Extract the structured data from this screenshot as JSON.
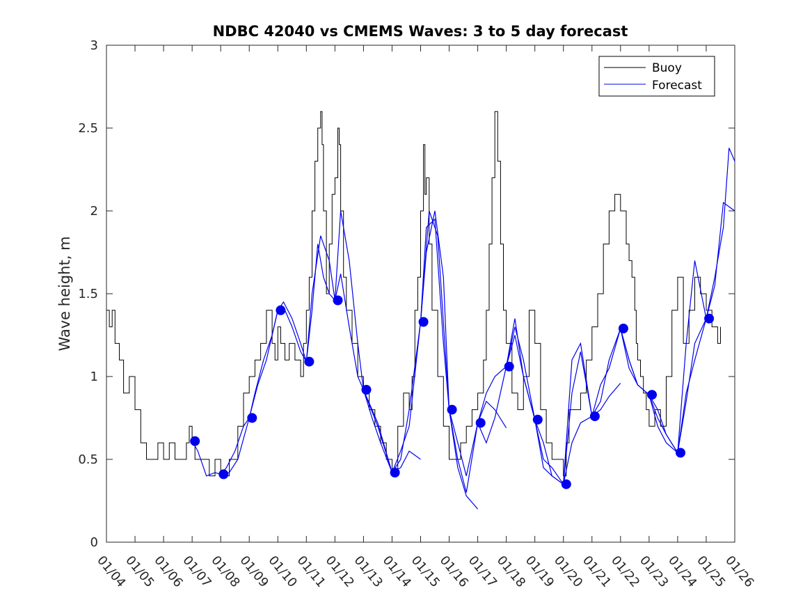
{
  "chart_data": {
    "type": "line",
    "title": "NDBC 42040 vs CMEMS Waves: 3 to 5 day forecast",
    "xlabel": "",
    "ylabel": "Wave height, m",
    "xlim": [
      0,
      22
    ],
    "ylim": [
      0,
      3
    ],
    "yticks": [
      0,
      0.5,
      1,
      1.5,
      2,
      2.5,
      3
    ],
    "ytick_labels": [
      "0",
      "0.5",
      "1",
      "1.5",
      "2",
      "2.5",
      "3"
    ],
    "xticks": [
      0,
      1,
      2,
      3,
      4,
      5,
      6,
      7,
      8,
      9,
      10,
      11,
      12,
      13,
      14,
      15,
      16,
      17,
      18,
      19,
      20,
      21,
      22
    ],
    "xtick_labels": [
      "01/04",
      "01/05",
      "01/06",
      "01/07",
      "01/08",
      "01/09",
      "01/10",
      "01/11",
      "01/12",
      "01/13",
      "01/14",
      "01/15",
      "01/16",
      "01/17",
      "01/18",
      "01/19",
      "01/20",
      "01/21",
      "01/22",
      "01/23",
      "01/24",
      "01/25",
      "01/26"
    ],
    "grid": false,
    "legend": {
      "position": "top-right",
      "entries": [
        "Buoy",
        "Forecast"
      ]
    },
    "colors": {
      "buoy": "#000000",
      "forecast": "#0000ee",
      "markers": "#0000ee"
    },
    "series": [
      {
        "name": "Buoy",
        "color": "#000000",
        "step": true,
        "x": [
          0.0,
          0.1,
          0.2,
          0.3,
          0.45,
          0.6,
          0.8,
          1.0,
          1.2,
          1.4,
          1.6,
          1.8,
          2.0,
          2.2,
          2.4,
          2.6,
          2.8,
          2.9,
          3.0,
          3.1,
          3.2,
          3.4,
          3.6,
          3.8,
          4.0,
          4.3,
          4.6,
          4.8,
          5.0,
          5.2,
          5.4,
          5.6,
          5.8,
          5.9,
          6.0,
          6.1,
          6.25,
          6.4,
          6.6,
          6.8,
          6.9,
          7.0,
          7.1,
          7.2,
          7.3,
          7.4,
          7.5,
          7.55,
          7.6,
          7.7,
          7.8,
          7.9,
          8.0,
          8.1,
          8.15,
          8.2,
          8.3,
          8.4,
          8.6,
          8.8,
          9.0,
          9.2,
          9.4,
          9.6,
          9.8,
          10.0,
          10.2,
          10.4,
          10.6,
          10.7,
          10.8,
          10.9,
          11.0,
          11.1,
          11.15,
          11.2,
          11.3,
          11.4,
          11.6,
          11.8,
          12.0,
          12.2,
          12.4,
          12.6,
          12.8,
          13.0,
          13.2,
          13.3,
          13.4,
          13.5,
          13.6,
          13.7,
          13.8,
          13.9,
          14.0,
          14.2,
          14.4,
          14.6,
          14.8,
          15.0,
          15.2,
          15.4,
          15.6,
          15.8,
          16.0,
          16.1,
          16.2,
          16.4,
          16.6,
          16.8,
          17.0,
          17.2,
          17.4,
          17.6,
          17.8,
          18.0,
          18.2,
          18.3,
          18.4,
          18.5,
          18.55,
          18.6,
          18.7,
          18.8,
          18.9,
          19.0,
          19.2,
          19.4,
          19.6,
          19.8,
          20.0,
          20.2,
          20.4,
          20.6,
          20.8,
          21.0,
          21.2,
          21.4,
          21.5
        ],
        "y": [
          1.4,
          1.3,
          1.4,
          1.2,
          1.1,
          0.9,
          1.0,
          0.8,
          0.6,
          0.5,
          0.5,
          0.6,
          0.5,
          0.6,
          0.5,
          0.5,
          0.6,
          0.7,
          0.6,
          0.5,
          0.5,
          0.5,
          0.4,
          0.5,
          0.4,
          0.5,
          0.7,
          0.9,
          1.0,
          1.1,
          1.2,
          1.4,
          1.2,
          1.1,
          1.3,
          1.2,
          1.1,
          1.2,
          1.1,
          1.0,
          1.2,
          1.4,
          1.6,
          2.0,
          2.3,
          2.5,
          2.6,
          2.4,
          2.0,
          1.5,
          1.8,
          2.1,
          2.2,
          2.5,
          2.4,
          2.0,
          1.6,
          1.4,
          1.2,
          1.0,
          0.9,
          0.8,
          0.7,
          0.6,
          0.5,
          0.4,
          0.7,
          0.9,
          0.8,
          1.0,
          1.4,
          1.6,
          2.0,
          2.4,
          2.1,
          2.2,
          1.8,
          1.4,
          1.0,
          0.7,
          0.5,
          0.5,
          0.6,
          0.7,
          0.8,
          0.9,
          1.1,
          1.4,
          1.8,
          2.2,
          2.6,
          2.3,
          1.8,
          1.4,
          1.2,
          0.9,
          0.8,
          1.0,
          1.4,
          1.2,
          0.8,
          0.6,
          0.5,
          0.5,
          0.4,
          0.6,
          0.8,
          0.8,
          0.9,
          1.1,
          1.3,
          1.5,
          1.8,
          2.0,
          2.1,
          2.0,
          1.8,
          1.7,
          1.6,
          1.4,
          1.2,
          1.1,
          1.0,
          0.9,
          0.8,
          0.7,
          0.8,
          0.7,
          1.0,
          1.4,
          1.6,
          1.2,
          1.4,
          1.6,
          1.5,
          1.4,
          1.3,
          1.2,
          1.3
        ]
      },
      {
        "name": "Forecast",
        "color": "#0000ee",
        "segments": [
          {
            "x": [
              3.0,
              3.2,
              3.5,
              3.8,
              4.0,
              4.2,
              4.5,
              4.8,
              5.0,
              5.2,
              5.5,
              5.8,
              6.0
            ],
            "y": [
              0.61,
              0.55,
              0.4,
              0.42,
              0.41,
              0.45,
              0.55,
              0.7,
              0.75,
              0.9,
              1.1,
              1.25,
              1.4
            ]
          },
          {
            "x": [
              4.0,
              4.3,
              4.6,
              5.0,
              5.3,
              5.6,
              6.0,
              6.2,
              6.5,
              6.8,
              7.0
            ],
            "y": [
              0.41,
              0.42,
              0.5,
              0.75,
              0.95,
              1.1,
              1.4,
              1.45,
              1.35,
              1.2,
              1.09
            ]
          },
          {
            "x": [
              6.0,
              6.2,
              6.5,
              6.8,
              7.0,
              7.2,
              7.4,
              7.6,
              7.8,
              8.0
            ],
            "y": [
              1.4,
              1.42,
              1.3,
              1.15,
              1.09,
              1.4,
              1.8,
              1.6,
              1.5,
              1.46
            ]
          },
          {
            "x": [
              7.0,
              7.2,
              7.5,
              7.8,
              8.0,
              8.2,
              8.5,
              8.8,
              9.0,
              9.3,
              9.6,
              10.0
            ],
            "y": [
              1.09,
              1.5,
              1.85,
              1.7,
              1.46,
              2.0,
              1.7,
              1.2,
              0.92,
              0.75,
              0.6,
              0.42
            ]
          },
          {
            "x": [
              8.0,
              8.2,
              8.5,
              8.8,
              9.0,
              9.5,
              10.0,
              10.3,
              10.6,
              11.0
            ],
            "y": [
              1.46,
              1.62,
              1.3,
              1.0,
              0.92,
              0.7,
              0.42,
              0.45,
              0.55,
              0.5
            ]
          },
          {
            "x": [
              9.0,
              9.5,
              10.0,
              10.3,
              10.6,
              11.0,
              11.2,
              11.5,
              11.8,
              12.0
            ],
            "y": [
              0.92,
              0.72,
              0.42,
              0.55,
              0.7,
              1.33,
              1.75,
              2.0,
              1.6,
              0.8
            ]
          },
          {
            "x": [
              10.0,
              10.3,
              10.6,
              11.0,
              11.2,
              11.5,
              11.8,
              12.0,
              12.3,
              12.6,
              13.0
            ],
            "y": [
              0.42,
              0.5,
              0.8,
              1.33,
              1.9,
              1.95,
              1.2,
              0.8,
              0.45,
              0.28,
              0.2
            ]
          },
          {
            "x": [
              11.0,
              11.3,
              11.6,
              12.0,
              12.3,
              12.6,
              13.0,
              13.3,
              13.6,
              14.0
            ],
            "y": [
              1.33,
              2.0,
              1.85,
              0.8,
              0.5,
              0.3,
              0.72,
              0.85,
              0.8,
              0.69
            ]
          },
          {
            "x": [
              12.0,
              12.3,
              12.6,
              13.0,
              13.3,
              13.6,
              14.0,
              14.3,
              14.6,
              15.0
            ],
            "y": [
              0.8,
              0.6,
              0.4,
              0.72,
              0.9,
              1.0,
              1.06,
              1.3,
              1.1,
              0.74
            ]
          },
          {
            "x": [
              13.0,
              13.3,
              13.6,
              14.0,
              14.3,
              14.6,
              15.0,
              15.3,
              15.6,
              16.0
            ],
            "y": [
              0.72,
              0.6,
              0.75,
              1.06,
              1.25,
              1.0,
              0.74,
              0.5,
              0.45,
              0.35
            ]
          },
          {
            "x": [
              14.0,
              14.3,
              14.6,
              15.0,
              15.3,
              15.6,
              16.0,
              16.3,
              16.6,
              17.0
            ],
            "y": [
              1.06,
              1.35,
              1.0,
              0.74,
              0.45,
              0.4,
              0.35,
              1.1,
              1.2,
              0.76
            ]
          },
          {
            "x": [
              15.0,
              15.3,
              15.6,
              16.0,
              16.3,
              16.6,
              17.0,
              17.3,
              17.6,
              18.0
            ],
            "y": [
              0.74,
              0.6,
              0.4,
              0.35,
              0.6,
              0.72,
              0.76,
              0.8,
              0.88,
              0.96
            ]
          },
          {
            "x": [
              16.0,
              16.3,
              16.6,
              17.0,
              17.3,
              17.6,
              18.0,
              18.3,
              18.6,
              19.0
            ],
            "y": [
              0.35,
              0.9,
              1.15,
              0.76,
              0.85,
              1.1,
              1.29,
              1.05,
              0.95,
              0.89
            ]
          },
          {
            "x": [
              17.0,
              17.3,
              17.6,
              18.0,
              18.3,
              18.6,
              19.0,
              19.3,
              19.6,
              20.0
            ],
            "y": [
              0.76,
              0.95,
              1.05,
              1.29,
              1.1,
              0.95,
              0.89,
              0.75,
              0.65,
              0.54
            ]
          },
          {
            "x": [
              18.0,
              18.3,
              18.6,
              19.0,
              19.3,
              19.6,
              20.0,
              20.3,
              20.6,
              21.0
            ],
            "y": [
              1.29,
              1.1,
              0.95,
              0.89,
              0.7,
              0.6,
              0.54,
              1.2,
              1.7,
              1.35
            ]
          },
          {
            "x": [
              19.0,
              19.3,
              19.6,
              20.0,
              20.3,
              20.6,
              21.0,
              21.3,
              21.6,
              22.0
            ],
            "y": [
              0.89,
              0.8,
              0.65,
              0.54,
              0.9,
              1.1,
              1.35,
              1.55,
              2.05,
              2.0
            ]
          },
          {
            "x": [
              20.0,
              20.3,
              20.6,
              21.0,
              21.3,
              21.6,
              21.8,
              22.0
            ],
            "y": [
              0.54,
              0.85,
              1.2,
              1.35,
              1.6,
              1.9,
              2.38,
              2.3
            ]
          }
        ]
      }
    ],
    "markers": {
      "name": "Forecast start points",
      "color": "#0000ee",
      "x": [
        3.1,
        4.1,
        5.1,
        6.1,
        7.1,
        8.1,
        9.1,
        10.1,
        11.1,
        12.1,
        13.1,
        14.1,
        15.1,
        16.1,
        17.1,
        18.1,
        19.1,
        20.1,
        21.1
      ],
      "y": [
        0.61,
        0.41,
        0.75,
        1.4,
        1.09,
        1.46,
        0.92,
        0.42,
        1.33,
        0.8,
        0.72,
        1.06,
        0.74,
        0.35,
        0.76,
        1.29,
        0.89,
        0.54,
        1.35
      ]
    }
  }
}
